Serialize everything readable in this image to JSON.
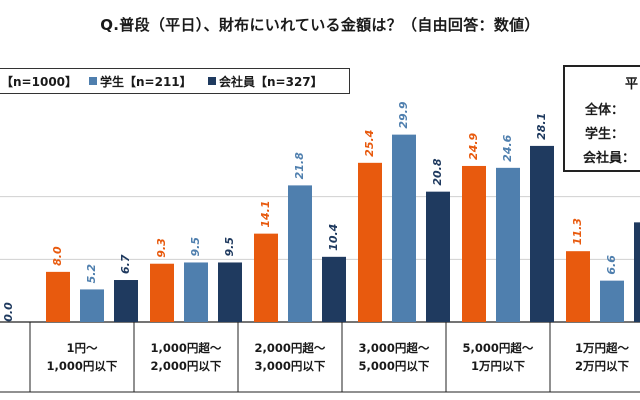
{
  "title": "Q.普段（平日）、財布にいれている金額は？（自由回答：数値）",
  "legend": [
    {
      "label": "n=1000】",
      "color": "#e85a0e"
    },
    {
      "label": "学生【n=211】",
      "color": "#4f7fae"
    },
    {
      "label": "会社員【n=327】",
      "color": "#1f3a5f"
    }
  ],
  "avg_box": {
    "heading": "平",
    "rows": [
      "全体：",
      "学生：",
      "会社員："
    ]
  },
  "chart_data": {
    "type": "bar",
    "categories": [
      "1円～\n1,000円以下",
      "1,000円超～\n2,000円以下",
      "2,000円超～\n3,000円以下",
      "3,000円超～\n5,000円以下",
      "5,000円超～\n1万円以下",
      "1万円超～\n2万円以下"
    ],
    "leading_partial_label": "0.0",
    "series": [
      {
        "name": "全体",
        "color": "#e85a0e",
        "values": [
          8.0,
          9.3,
          14.1,
          25.4,
          24.9,
          11.3
        ]
      },
      {
        "name": "学生",
        "color": "#4f7fae",
        "values": [
          5.2,
          9.5,
          21.8,
          29.9,
          24.6,
          6.6
        ]
      },
      {
        "name": "会社員",
        "color": "#1f3a5f",
        "values": [
          6.7,
          9.5,
          10.4,
          20.8,
          28.1,
          15.9
        ]
      }
    ],
    "ylim": [
      0,
      30
    ],
    "grid": true
  }
}
